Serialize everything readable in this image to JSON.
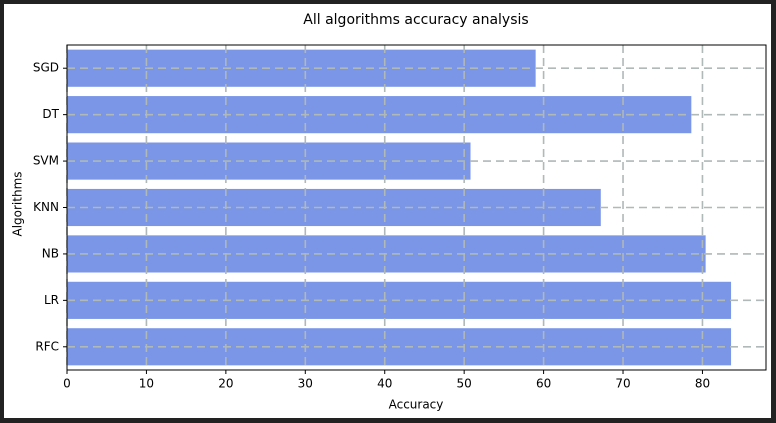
{
  "chart_data": {
    "type": "barh",
    "title": "All algorithms accuracy analysis",
    "x_label": "Accuracy",
    "y_label": "Algorithms",
    "categories": [
      "RFC",
      "LR",
      "NB",
      "KNN",
      "SVM",
      "DT",
      "SGD"
    ],
    "values": [
      83.6,
      83.6,
      80.4,
      67.2,
      50.8,
      78.6,
      59.0
    ],
    "color": "#7b96e6",
    "xlim": [
      0,
      88
    ],
    "xticks": [
      0,
      10,
      20,
      30,
      40,
      50,
      60,
      70,
      80
    ],
    "grid": true
  }
}
